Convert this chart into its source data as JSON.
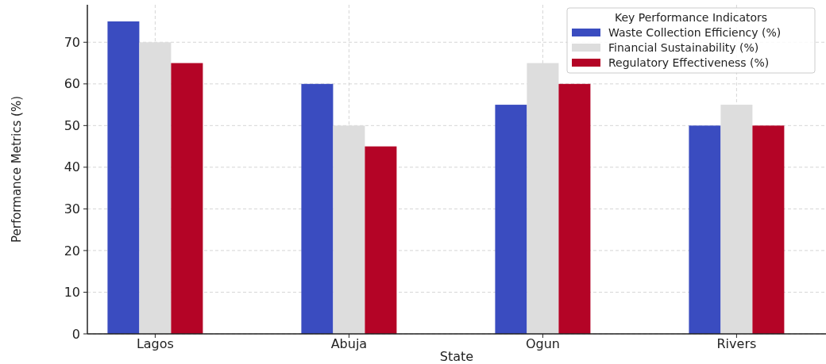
{
  "chart_data": {
    "type": "bar",
    "xlabel": "State",
    "ylabel": "Performance Metrics (%)",
    "legend_title": "Key Performance Indicators",
    "categories": [
      "Lagos",
      "Abuja",
      "Ogun",
      "Rivers"
    ],
    "series": [
      {
        "name": "Waste Collection Efficiency (%)",
        "color": "#3a4cc0",
        "values": [
          75,
          60,
          55,
          50
        ]
      },
      {
        "name": "Financial Sustainability (%)",
        "color": "#dddddd",
        "values": [
          70,
          50,
          65,
          55
        ]
      },
      {
        "name": "Regulatory Effectiveness (%)",
        "color": "#b40426",
        "values": [
          65,
          45,
          60,
          50
        ]
      }
    ],
    "ylim": [
      0,
      79
    ],
    "yticks": [
      0,
      10,
      20,
      30,
      40,
      50,
      60,
      70
    ],
    "grid": true,
    "legend": "top right"
  }
}
